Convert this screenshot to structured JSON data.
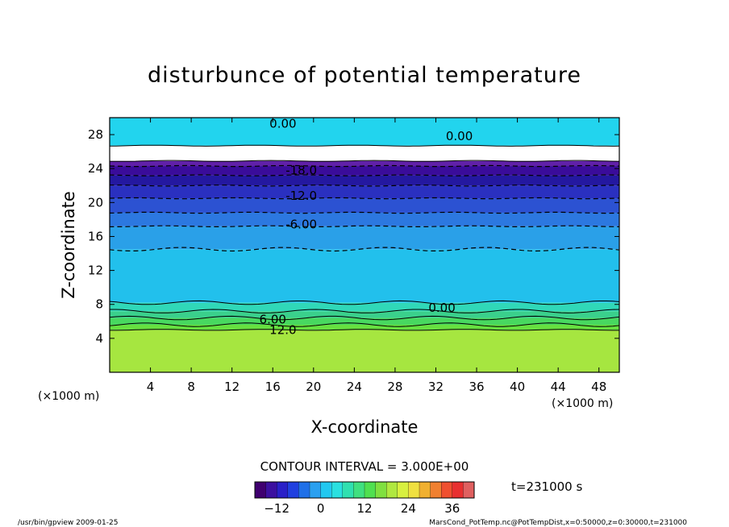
{
  "title": "disturbunce of potential temperature",
  "contour_interval_text": "CONTOUR INTERVAL = 3.000E+00",
  "time_text": "t=231000 s",
  "footer_left": "/usr/bin/gpview   2009-01-25",
  "footer_right": "MarsCond_PotTemp.nc@PotTempDist,x=0:50000,z=0:30000,t=231000",
  "chart_data": {
    "type": "heatmap",
    "title": "disturbunce of potential temperature",
    "xlabel": "X-coordinate",
    "ylabel": "Z-coordinate",
    "x_unit": "(×1000 m)",
    "y_unit": "(×1000 m)",
    "xlim": [
      0,
      50
    ],
    "ylim": [
      0,
      30
    ],
    "x_ticks": [
      4,
      8,
      12,
      16,
      20,
      24,
      28,
      32,
      36,
      40,
      44,
      48
    ],
    "y_ticks": [
      4,
      8,
      12,
      16,
      20,
      24,
      28
    ],
    "contour_interval": 3.0,
    "contour_labels": [
      {
        "text": "0.00",
        "x": 17.0,
        "y": 29.3
      },
      {
        "text": "0.00",
        "x": 34.3,
        "y": 27.8
      },
      {
        "text": "-18.0",
        "x": 18.8,
        "y": 23.8
      },
      {
        "text": "-12.0",
        "x": 18.8,
        "y": 20.8
      },
      {
        "text": "-6.00",
        "x": 18.8,
        "y": 17.4
      },
      {
        "text": "0.00",
        "x": 32.6,
        "y": 7.6
      },
      {
        "text": "6.00",
        "x": 16.0,
        "y": 6.2
      },
      {
        "text": "12.0",
        "x": 17.0,
        "y": 5.0
      }
    ],
    "bands": [
      {
        "z0": 0.0,
        "z1": 5.0,
        "value": 18,
        "color": "#a6e640"
      },
      {
        "z0": 5.0,
        "z1": 5.6,
        "value": 12,
        "color": "#66e040"
      },
      {
        "z0": 5.6,
        "z1": 6.4,
        "value": 9,
        "color": "#48d860"
      },
      {
        "z0": 6.4,
        "z1": 7.2,
        "value": 6,
        "color": "#3ad08c"
      },
      {
        "z0": 7.2,
        "z1": 8.2,
        "value": 3,
        "color": "#30d8b8"
      },
      {
        "z0": 8.2,
        "z1": 14.5,
        "value": 0,
        "color": "#22c0ec"
      },
      {
        "z0": 14.5,
        "z1": 17.2,
        "value": -4,
        "color": "#2aa0e8"
      },
      {
        "z0": 17.2,
        "z1": 18.8,
        "value": -7,
        "color": "#2c78e0"
      },
      {
        "z0": 18.8,
        "z1": 20.5,
        "value": -10,
        "color": "#2c52d2"
      },
      {
        "z0": 20.5,
        "z1": 22.0,
        "value": -13,
        "color": "#2a30c0"
      },
      {
        "z0": 22.0,
        "z1": 23.2,
        "value": -16,
        "color": "#2418a0"
      },
      {
        "z0": 23.2,
        "z1": 24.3,
        "value": -19,
        "color": "#3a0c9a"
      },
      {
        "z0": 24.3,
        "z1": 24.9,
        "value": -21,
        "color": "#6020a8"
      },
      {
        "z0": 24.9,
        "z1": 26.7,
        "value": null,
        "color": "#ffffff"
      },
      {
        "z0": 26.7,
        "z1": 30.0,
        "value": 0,
        "color": "#22d4ee"
      }
    ],
    "colorbar": {
      "min": -18,
      "max": 42,
      "step": 3,
      "tick_values": [
        -12,
        0,
        12,
        24,
        36
      ],
      "tick_labels": [
        "−12",
        "0",
        "12",
        "24",
        "36"
      ],
      "colors": [
        "#400070",
        "#3c10a0",
        "#2a20c8",
        "#2040e0",
        "#2070e8",
        "#2aa0f0",
        "#22c8f0",
        "#2ae0e0",
        "#30e0b0",
        "#40e080",
        "#50e050",
        "#80e040",
        "#b0e840",
        "#d8f040",
        "#f0e040",
        "#f0b030",
        "#f08030",
        "#f05030",
        "#e83030",
        "#e06060"
      ]
    }
  }
}
